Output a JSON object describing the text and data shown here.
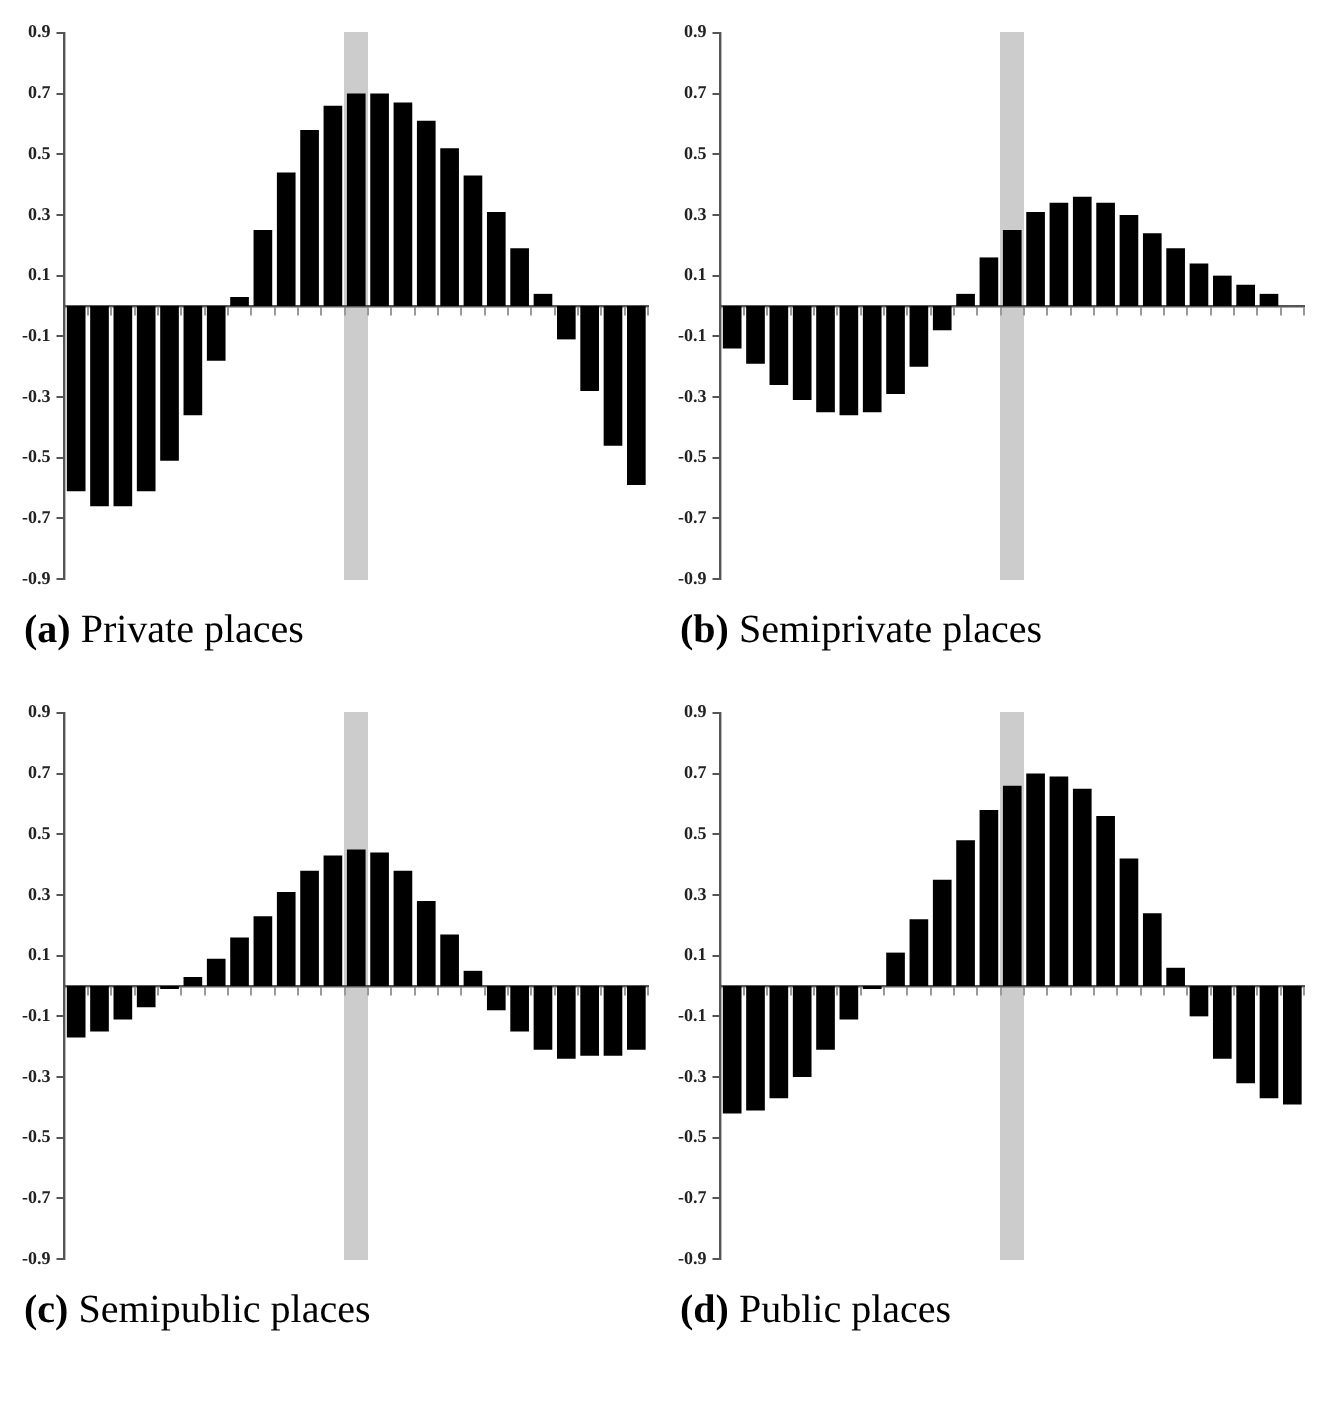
{
  "chart_data": [
    {
      "type": "bar",
      "title": "(a) Private places",
      "categories": [
        null,
        null,
        null,
        null,
        null,
        null,
        null,
        null,
        null,
        null,
        null,
        null,
        null,
        null,
        null,
        null,
        null,
        null,
        null,
        null,
        null,
        null,
        null,
        null,
        null
      ],
      "values": [
        -0.61,
        -0.66,
        -0.66,
        -0.61,
        -0.51,
        -0.36,
        -0.18,
        0.03,
        0.25,
        0.44,
        0.58,
        0.66,
        0.7,
        0.7,
        0.67,
        0.61,
        0.52,
        0.43,
        0.31,
        0.19,
        0.04,
        -0.11,
        -0.28,
        -0.46,
        -0.59
      ],
      "color": "#000000",
      "ylim": [
        -0.9,
        0.9
      ],
      "yticks": [
        -0.9,
        -0.7,
        -0.5,
        -0.3,
        -0.1,
        0.1,
        0.3,
        0.5,
        0.7,
        0.9
      ],
      "tick_labels": "y"
    },
    {
      "type": "bar",
      "title": "(b) Semiprivate places",
      "categories": [
        null,
        null,
        null,
        null,
        null,
        null,
        null,
        null,
        null,
        null,
        null,
        null,
        null,
        null,
        null,
        null,
        null,
        null,
        null,
        null,
        null,
        null,
        null,
        null,
        null
      ],
      "values": [
        -0.14,
        -0.19,
        -0.26,
        -0.31,
        -0.35,
        -0.36,
        -0.35,
        -0.29,
        -0.2,
        -0.08,
        0.04,
        0.16,
        0.25,
        0.31,
        0.34,
        0.36,
        0.34,
        0.3,
        0.24,
        0.19,
        0.14,
        0.1,
        0.07,
        0.04,
        0.0
      ],
      "color": "#000000",
      "ylim": [
        -0.9,
        0.9
      ],
      "yticks": [
        -0.9,
        -0.7,
        -0.5,
        -0.3,
        -0.1,
        0.1,
        0.3,
        0.5,
        0.7,
        0.9
      ],
      "tick_labels": "y"
    },
    {
      "type": "bar",
      "title": "(c) Semipublic places",
      "categories": [
        null,
        null,
        null,
        null,
        null,
        null,
        null,
        null,
        null,
        null,
        null,
        null,
        null,
        null,
        null,
        null,
        null,
        null,
        null,
        null,
        null,
        null,
        null,
        null,
        null
      ],
      "values": [
        -0.17,
        -0.15,
        -0.11,
        -0.07,
        -0.01,
        0.03,
        0.09,
        0.16,
        0.23,
        0.31,
        0.38,
        0.43,
        0.45,
        0.44,
        0.38,
        0.28,
        0.17,
        0.05,
        -0.08,
        -0.15,
        -0.21,
        -0.24,
        -0.23,
        -0.23,
        -0.21
      ],
      "color": "#000000",
      "ylim": [
        -0.9,
        0.9
      ],
      "yticks": [
        -0.9,
        -0.7,
        -0.5,
        -0.3,
        -0.1,
        0.1,
        0.3,
        0.5,
        0.7,
        0.9
      ],
      "tick_labels": "y"
    },
    {
      "type": "bar",
      "title": "(d) Public places",
      "categories": [
        null,
        null,
        null,
        null,
        null,
        null,
        null,
        null,
        null,
        null,
        null,
        null,
        null,
        null,
        null,
        null,
        null,
        null,
        null,
        null,
        null,
        null,
        null,
        null,
        null
      ],
      "values": [
        -0.42,
        -0.41,
        -0.37,
        -0.3,
        -0.21,
        -0.11,
        -0.01,
        0.11,
        0.22,
        0.35,
        0.48,
        0.58,
        0.66,
        0.7,
        0.69,
        0.65,
        0.56,
        0.42,
        0.24,
        0.06,
        -0.1,
        -0.24,
        -0.32,
        -0.37,
        -0.39
      ],
      "color": "#000000",
      "ylim": [
        -0.9,
        0.9
      ],
      "yticks": [
        -0.9,
        -0.7,
        -0.5,
        -0.3,
        -0.1,
        0.1,
        0.3,
        0.5,
        0.7,
        0.9
      ],
      "tick_labels": "y"
    }
  ]
}
